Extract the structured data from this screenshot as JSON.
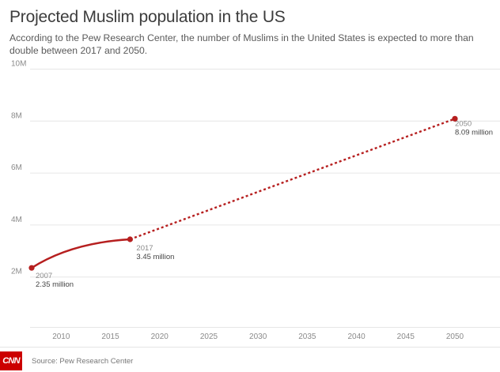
{
  "header": {
    "title": "Projected Muslim population in the US",
    "subtitle": "According to the Pew Research Center, the number of Muslims in the United States is expected to more than double between 2017 and 2050."
  },
  "footer": {
    "logo_text": "CNN",
    "source": "Source: Pew Research Center"
  },
  "colors": {
    "line": "#b61f1f",
    "grid": "#e6e6e6",
    "axis_text": "#8a8a8a",
    "label_text": "#444444"
  },
  "chart_data": {
    "type": "line",
    "title": "Projected Muslim population in the US",
    "xlim": [
      2007,
      2050
    ],
    "ylim": [
      0,
      10
    ],
    "x_ticks": [
      2010,
      2015,
      2020,
      2025,
      2030,
      2035,
      2040,
      2045,
      2050
    ],
    "y_ticks": [
      {
        "value": 2,
        "label": "2M"
      },
      {
        "value": 4,
        "label": "4M"
      },
      {
        "value": 6,
        "label": "6M"
      },
      {
        "value": 8,
        "label": "8M"
      },
      {
        "value": 10,
        "label": "10M"
      }
    ],
    "grid": "horizontal",
    "series": [
      {
        "values": [
          {
            "x": 2007,
            "y": 2.35
          },
          {
            "x": 2017,
            "y": 3.45
          }
        ],
        "style": "solid-curve"
      },
      {
        "values": [
          {
            "x": 2017,
            "y": 3.45
          },
          {
            "x": 2050,
            "y": 8.09
          }
        ],
        "style": "dotted"
      }
    ],
    "annotations": [
      {
        "x": 2007,
        "y": 2.35,
        "year": "2007",
        "value": "2.35 million"
      },
      {
        "x": 2017,
        "y": 3.45,
        "year": "2017",
        "value": "3.45 million"
      },
      {
        "x": 2050,
        "y": 8.09,
        "year": "2050",
        "value": "8.09 million"
      }
    ]
  }
}
